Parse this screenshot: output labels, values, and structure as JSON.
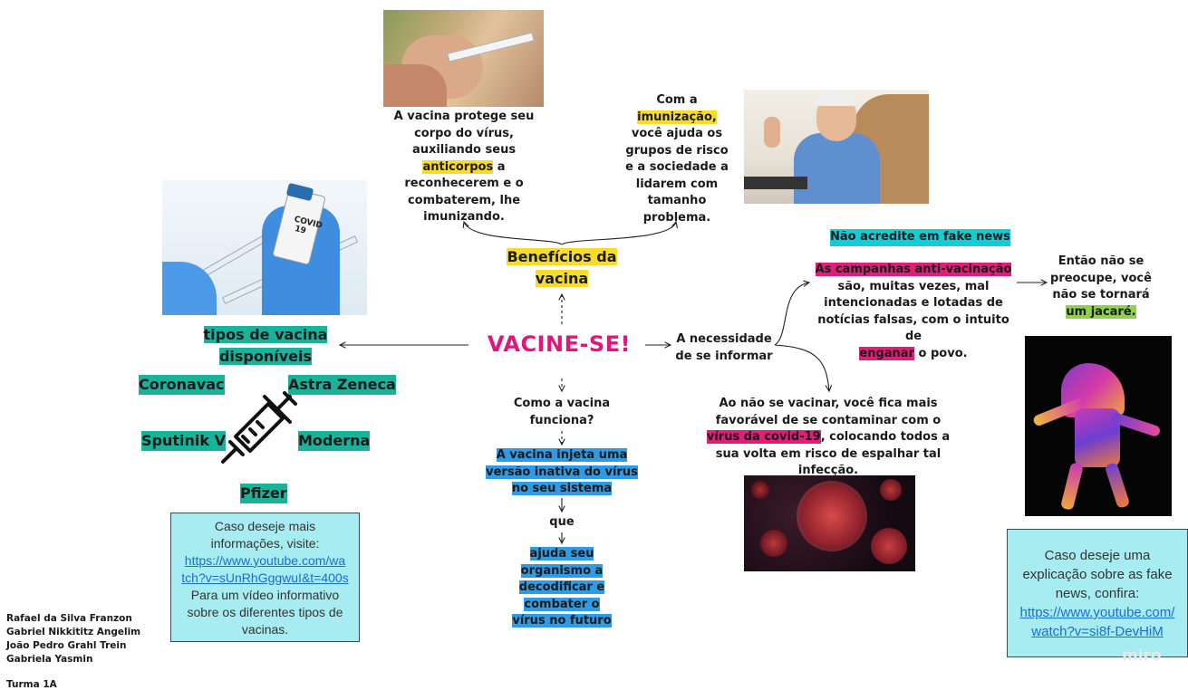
{
  "center_title": "VACINE-SE!",
  "benefits": {
    "title_line1": "Benefícios da",
    "title_line2": "vacina",
    "left_text": {
      "l1": "A vacina protege seu",
      "l2": "corpo do vírus,",
      "l3": "auxiliando seus",
      "l4a": "anticorpos",
      "l4b": " a",
      "l5": "reconhecerem e o",
      "l6": "combaterem, lhe",
      "l7": "imunizando."
    },
    "right_text": {
      "l1": "Com a",
      "l2": "imunização,",
      "l3": "você ajuda os",
      "l4": "grupos de risco",
      "l5": "e a sociedade a",
      "l6": "lidarem com",
      "l7": "tamanho",
      "l8": "problema."
    }
  },
  "types": {
    "title_line1": "tipos de vacina",
    "title_line2": "disponíveis",
    "items": [
      "Coronavac",
      "Astra Zeneca",
      "Sputinik V",
      "Moderna",
      "Pfizer"
    ]
  },
  "how": {
    "question_l1": "Como a vacina",
    "question_l2": "funciona?",
    "answer_l1": "A vacina injeta uma",
    "answer_l2": "versão inativa do vírus",
    "answer_l3": "no seu sistema",
    "connector": "que",
    "result_l1": "ajuda seu",
    "result_l2": "organismo a",
    "result_l3": "decodificar e",
    "result_l4": "combater o",
    "result_l5": "vírus no futuro"
  },
  "inform": {
    "title_l1": "A necessidade",
    "title_l2": "de se informar",
    "fake_header": "Não acredite em fake news",
    "campaign_hl": "As campanhas anti-vacinação",
    "campaign_l2": "são, muitas vezes, mal",
    "campaign_l3": "intencionadas e lotadas de",
    "campaign_l4": "notícias falsas, com o intuito de",
    "campaign_l5a": "enganar",
    "campaign_l5b": " o povo.",
    "result_l1": "Então não se",
    "result_l2": "preocupe, você",
    "result_l3": "não se tornará",
    "result_l4": "um jacaré.",
    "risk_l1": "Ao não se vacinar, você fica mais",
    "risk_l2": "favorável de se contaminar  com o",
    "risk_l3a": "vírus da covid-19",
    "risk_l3b": ", colocando todos a",
    "risk_l4": "sua volta em risco de espalhar tal",
    "risk_l5": "infecção."
  },
  "note_left": {
    "l1": "Caso deseje mais",
    "l2": "informações, visite:",
    "link_l1": "https://www.youtube.com/wa",
    "link_l2": "tch?v=sUnRhGggwuI&t=400s",
    "l5": "Para um vídeo informativo",
    "l6": "sobre os diferentes tipos de",
    "l7": "vacinas."
  },
  "note_right": {
    "l1": "Caso deseje uma",
    "l2": "explicação sobre as fake",
    "l3": "news, confira:",
    "link_l1": "https://www.youtube.com/",
    "link_l2": "watch?v=si8f-DevHiM"
  },
  "authors": [
    "Rafael da Silva Franzon",
    "Gabriel Nikkititz Angelim",
    "João Pedro Grahl Trein",
    "Gabriela Yasmin"
  ],
  "class": "Turma 1A",
  "watermark": "miro",
  "icons": [
    "syringe-icon"
  ],
  "colors": {
    "title": "#e0167a",
    "yellow": "#fadb29",
    "teal": "#19b39b",
    "blue": "#2f9be4",
    "pink": "#e11d78",
    "green": "#8fd14f",
    "cyan": "#12cdd4",
    "note": "#a6ecf0"
  }
}
